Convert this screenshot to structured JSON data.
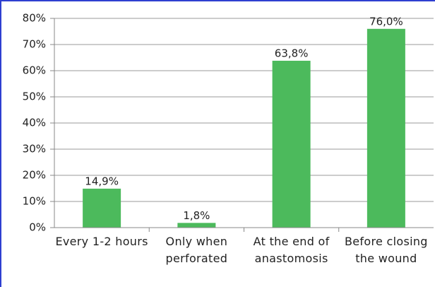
{
  "chart_data": {
    "type": "bar",
    "categories": [
      "Every 1-2 hours",
      "Only when perforated",
      "At the end of anastomosis",
      "Before closing the wound"
    ],
    "values": [
      14.9,
      1.8,
      63.8,
      76.0
    ],
    "value_labels": [
      "14,9%",
      "1,8%",
      "63,8%",
      "76,0%"
    ],
    "color": "#4cba5c",
    "ylim": [
      0,
      80
    ],
    "yticks": [
      {
        "value": 0,
        "label": "0%"
      },
      {
        "value": 10,
        "label": "10%"
      },
      {
        "value": 20,
        "label": "20%"
      },
      {
        "value": 30,
        "label": "30%"
      },
      {
        "value": 40,
        "label": "40%"
      },
      {
        "value": 50,
        "label": "50%"
      },
      {
        "value": 60,
        "label": "60%"
      },
      {
        "value": 70,
        "label": "70%"
      },
      {
        "value": 80,
        "label": "80%"
      }
    ],
    "grid": true
  }
}
